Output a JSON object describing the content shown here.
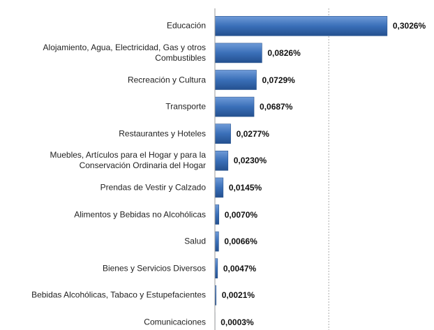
{
  "chart_data": {
    "type": "bar",
    "orientation": "horizontal",
    "categories": [
      "Educación",
      "Alojamiento, Agua, Electricidad, Gas y otros\nCombustibles",
      "Recreación y Cultura",
      "Transporte",
      "Restaurantes y Hoteles",
      "Muebles, Artículos para el Hogar y para la\nConservación Ordinaria del Hogar",
      "Prendas de Vestir y Calzado",
      "Alimentos y Bebidas no Alcohólicas",
      "Salud",
      "Bienes y Servicios Diversos",
      "Bebidas Alcohólicas, Tabaco y Estupefacientes",
      "Comunicaciones"
    ],
    "values": [
      0.3026,
      0.0826,
      0.0729,
      0.0687,
      0.0277,
      0.023,
      0.0145,
      0.007,
      0.0066,
      0.0047,
      0.0021,
      0.0003
    ],
    "value_labels": [
      "0,3026%",
      "0,0826%",
      "0,0729%",
      "0,0687%",
      "0,0277%",
      "0,0230%",
      "0,0145%",
      "0,0070%",
      "0,0066%",
      "0,0047%",
      "0,0021%",
      "0,0003%"
    ],
    "color": "#3a6fb8",
    "xlim": [
      0,
      0.38
    ],
    "gridlines": [
      0.2
    ]
  }
}
